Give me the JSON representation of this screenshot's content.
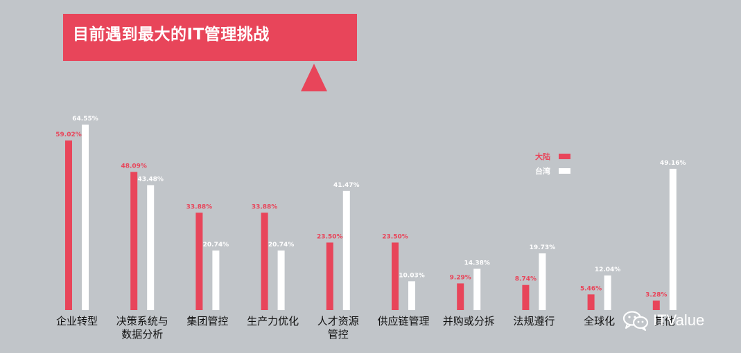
{
  "header": {
    "title": "目前遇到最大的IT管理挑战"
  },
  "watermark": {
    "text": "ITValue",
    "icon": "wechat-icon"
  },
  "colors": {
    "mainland": "#e8455a",
    "taiwan": "#ffffff",
    "background": "#c1c5c9",
    "label_text": "#111111"
  },
  "chart_data": {
    "type": "bar",
    "title": "目前遇到最大的IT管理挑战",
    "categories": [
      [
        "企业转型"
      ],
      [
        "决策系统与",
        "数据分析"
      ],
      [
        "集团管控"
      ],
      [
        "生产力优化"
      ],
      [
        "人才资源",
        "管控"
      ],
      [
        "供应链管理"
      ],
      [
        "并购或分拆"
      ],
      [
        "法规遵行"
      ],
      [
        "全球化"
      ],
      [
        "其他"
      ]
    ],
    "series": [
      {
        "name": "大陆",
        "color": "#e8455a",
        "values": [
          59.02,
          48.09,
          33.88,
          33.88,
          23.5,
          23.5,
          9.29,
          8.74,
          5.46,
          3.28
        ],
        "labels": [
          "59.02%",
          "48.09%",
          "33.88%",
          "33.88%",
          "23.50%",
          "23.50%",
          "9.29%",
          "8.74%",
          "5.46%",
          "3.28%"
        ]
      },
      {
        "name": "台湾",
        "color": "#ffffff",
        "values": [
          64.55,
          43.48,
          20.74,
          20.74,
          41.47,
          10.03,
          14.38,
          19.73,
          12.04,
          49.16
        ],
        "labels": [
          "64.55%",
          "43.48%",
          "20.74%",
          "20.74%",
          "41.47%",
          "10.03%",
          "14.38%",
          "19.73%",
          "12.04%",
          "49.16%"
        ]
      }
    ],
    "ylim": [
      0,
      70
    ],
    "xlabel": "",
    "ylabel": "",
    "grid": false,
    "legend_position": "top-right"
  }
}
